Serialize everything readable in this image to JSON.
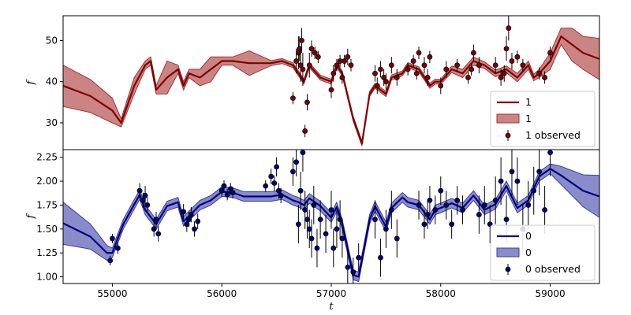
{
  "chart_data": [
    {
      "type": "line",
      "panel": "top",
      "xlabel": "",
      "ylabel": "f",
      "xlim": [
        54550,
        59450
      ],
      "ylim": [
        23.5,
        56
      ],
      "yticks": [
        30,
        40,
        50
      ],
      "colors": {
        "line": "#800000",
        "band": "#a83232",
        "marker": "#800000"
      },
      "legend": {
        "placement": "lower-right",
        "entries": [
          "1",
          "1",
          "1 observed"
        ]
      },
      "model": {
        "x": [
          54550,
          54800,
          55000,
          55080,
          55200,
          55300,
          55350,
          55400,
          55500,
          55600,
          55650,
          55700,
          55800,
          55900,
          56000,
          56100,
          56250,
          56450,
          56550,
          56650,
          56700,
          56750,
          56800,
          56900,
          57000,
          57050,
          57100,
          57200,
          57280,
          57350,
          57400,
          57500,
          57550,
          57650,
          57700,
          57800,
          57900,
          57950,
          58000,
          58100,
          58200,
          58300,
          58400,
          58500,
          58600,
          58700,
          58800,
          58850,
          58900,
          59000,
          59100,
          59200,
          59300,
          59450
        ],
        "y": [
          39,
          36.5,
          33,
          30,
          39,
          44,
          45,
          38,
          41,
          43,
          39,
          42,
          41,
          43,
          45,
          45,
          44.5,
          44.5,
          45,
          44,
          42,
          40,
          44,
          41,
          40,
          44,
          42,
          31,
          25,
          37,
          39,
          37,
          41,
          42,
          44,
          43,
          39,
          40,
          40,
          43,
          42,
          45,
          44,
          42,
          43,
          41,
          44,
          41,
          42,
          45,
          51,
          49,
          47,
          45.5
        ],
        "sigma": [
          5,
          4,
          3,
          1,
          2,
          1,
          1,
          1,
          4,
          1,
          1,
          1,
          2,
          3,
          1,
          1,
          3,
          0.6,
          0.6,
          0.6,
          0.6,
          0.6,
          0.6,
          0.6,
          0.6,
          0.6,
          0.6,
          0.6,
          0.6,
          0.6,
          0.6,
          0.6,
          0.6,
          0.6,
          0.6,
          0.6,
          0.6,
          0.6,
          0.6,
          0.8,
          1,
          1,
          0.8,
          0.8,
          0.8,
          1,
          1,
          0.8,
          1,
          2,
          2,
          4,
          4,
          5
        ]
      },
      "observed": {
        "x": [
          56650,
          56680,
          56700,
          56710,
          56720,
          56730,
          56740,
          56760,
          56780,
          56800,
          56820,
          56850,
          56880,
          57000,
          57020,
          57050,
          57080,
          57100,
          57120,
          57150,
          57180,
          57400,
          57420,
          57450,
          57480,
          57500,
          57550,
          57600,
          57700,
          57750,
          57780,
          57800,
          57850,
          57880,
          57900,
          58000,
          58050,
          58150,
          58250,
          58280,
          58300,
          58350,
          58500,
          58550,
          58580,
          58600,
          58620,
          58650,
          58700,
          58750,
          58900,
          58950,
          59000
        ],
        "y": [
          36,
          45,
          47,
          48,
          44,
          50,
          43,
          28,
          35,
          44,
          48,
          47,
          46,
          38,
          42,
          44,
          45,
          41,
          45,
          46,
          44,
          42,
          39,
          43,
          41,
          40,
          44,
          41,
          43,
          45,
          42,
          47,
          44,
          41,
          46,
          39,
          43,
          44,
          41,
          43,
          47,
          44,
          44,
          41,
          42,
          48,
          53,
          45,
          46,
          44,
          42,
          41,
          47
        ],
        "err": [
          1.5,
          3,
          4,
          3,
          4,
          3,
          4,
          1.5,
          2,
          3,
          2,
          1.5,
          1.5,
          2,
          2,
          1.5,
          1.5,
          1.5,
          1.5,
          2,
          1.5,
          2,
          2,
          2,
          2,
          2,
          2,
          2,
          1.5,
          1.5,
          1.5,
          1.5,
          2,
          2,
          1.5,
          2,
          2,
          1.5,
          1.5,
          1.5,
          2,
          2,
          2,
          2,
          2,
          3,
          3,
          2,
          1.5,
          1.5,
          1.5,
          1.5,
          1.5
        ]
      }
    },
    {
      "type": "line",
      "panel": "bottom",
      "xlabel": "t",
      "ylabel": "f",
      "xlim": [
        54550,
        59450
      ],
      "ylim": [
        0.93,
        2.33
      ],
      "xticks": [
        55000,
        56000,
        57000,
        58000,
        59000
      ],
      "yticks": [
        1.0,
        1.25,
        1.5,
        1.75,
        2.0,
        2.25
      ],
      "colors": {
        "line": "#000080",
        "band": "#3b3fa5",
        "marker": "#000080"
      },
      "legend": {
        "placement": "lower-right",
        "entries": [
          "0",
          "0",
          "0 observed"
        ]
      },
      "model": {
        "x": [
          54550,
          54800,
          54950,
          55000,
          55100,
          55250,
          55300,
          55400,
          55500,
          55600,
          55650,
          55800,
          55900,
          56000,
          56100,
          56200,
          56450,
          56550,
          56650,
          56700,
          56750,
          56800,
          56900,
          57000,
          57050,
          57100,
          57200,
          57250,
          57350,
          57400,
          57500,
          57550,
          57650,
          57700,
          57800,
          57900,
          57950,
          58000,
          58100,
          58200,
          58300,
          58400,
          58500,
          58600,
          58700,
          58800,
          58900,
          59000,
          59100,
          59200,
          59300,
          59450
        ],
        "y": [
          1.56,
          1.42,
          1.25,
          1.25,
          1.55,
          1.86,
          1.7,
          1.55,
          1.74,
          1.78,
          1.58,
          1.75,
          1.8,
          1.89,
          1.88,
          1.84,
          1.84,
          1.86,
          1.8,
          1.78,
          1.75,
          1.82,
          1.74,
          1.62,
          1.73,
          1.55,
          1.02,
          1.0,
          1.6,
          1.74,
          1.52,
          1.72,
          1.83,
          1.78,
          1.75,
          1.6,
          1.7,
          1.72,
          1.77,
          1.72,
          1.85,
          1.7,
          1.76,
          1.95,
          1.72,
          1.8,
          2.05,
          2.13,
          2.06,
          1.98,
          1.9,
          1.84
        ]
      },
      "observed": {
        "x": [
          54980,
          55000,
          55050,
          55250,
          55280,
          55300,
          55320,
          55380,
          55400,
          55420,
          55650,
          55680,
          55700,
          55720,
          55750,
          55780,
          56000,
          56020,
          56050,
          56080,
          56100,
          56400,
          56450,
          56480,
          56500,
          56520,
          56540,
          56650,
          56680,
          56700,
          56720,
          56740,
          56760,
          56780,
          56800,
          56820,
          56840,
          56870,
          56900,
          56950,
          57000,
          57020,
          57050,
          57080,
          57100,
          57150,
          57200,
          57250,
          57400,
          57450,
          57500,
          57550,
          57600,
          57800,
          57850,
          57880,
          57900,
          57950,
          58000,
          58050,
          58100,
          58150,
          58200,
          58350,
          58400,
          58450,
          58500,
          58550,
          58600,
          58650,
          58700,
          58750,
          58800,
          58850,
          58900,
          58950,
          59000
        ],
        "y": [
          1.17,
          1.4,
          1.3,
          1.9,
          1.8,
          1.85,
          1.75,
          1.5,
          1.6,
          1.45,
          1.68,
          1.55,
          1.6,
          1.65,
          1.5,
          1.58,
          1.9,
          1.95,
          1.86,
          1.92,
          1.88,
          1.95,
          2.05,
          1.98,
          2.15,
          1.9,
          1.85,
          2.1,
          2.2,
          1.55,
          1.9,
          2.3,
          1.7,
          1.6,
          1.5,
          1.4,
          1.75,
          1.3,
          1.6,
          1.45,
          1.7,
          1.3,
          1.5,
          1.6,
          1.4,
          1.1,
          1.05,
          1.2,
          1.6,
          1.2,
          1.5,
          1.7,
          1.4,
          1.75,
          1.55,
          1.65,
          1.8,
          1.7,
          1.9,
          1.75,
          1.55,
          1.8,
          1.7,
          1.65,
          1.75,
          1.55,
          1.8,
          2.0,
          1.6,
          2.1,
          2.0,
          1.5,
          1.75,
          1.9,
          2.1,
          1.7,
          2.3
        ],
        "err": [
          0.05,
          0.05,
          0.06,
          0.08,
          0.08,
          0.1,
          0.08,
          0.08,
          0.08,
          0.08,
          0.08,
          0.08,
          0.08,
          0.08,
          0.08,
          0.08,
          0.06,
          0.06,
          0.06,
          0.06,
          0.06,
          0.06,
          0.08,
          0.08,
          0.1,
          0.08,
          0.08,
          0.15,
          0.15,
          0.2,
          0.2,
          0.2,
          0.2,
          0.2,
          0.2,
          0.2,
          0.2,
          0.2,
          0.2,
          0.2,
          0.2,
          0.2,
          0.2,
          0.2,
          0.2,
          0.2,
          0.15,
          0.15,
          0.2,
          0.2,
          0.2,
          0.2,
          0.2,
          0.15,
          0.15,
          0.15,
          0.15,
          0.15,
          0.15,
          0.15,
          0.15,
          0.15,
          0.15,
          0.2,
          0.2,
          0.2,
          0.25,
          0.25,
          0.25,
          0.25,
          0.25,
          0.25,
          0.25,
          0.25,
          0.25,
          0.25,
          0.25
        ]
      }
    }
  ]
}
